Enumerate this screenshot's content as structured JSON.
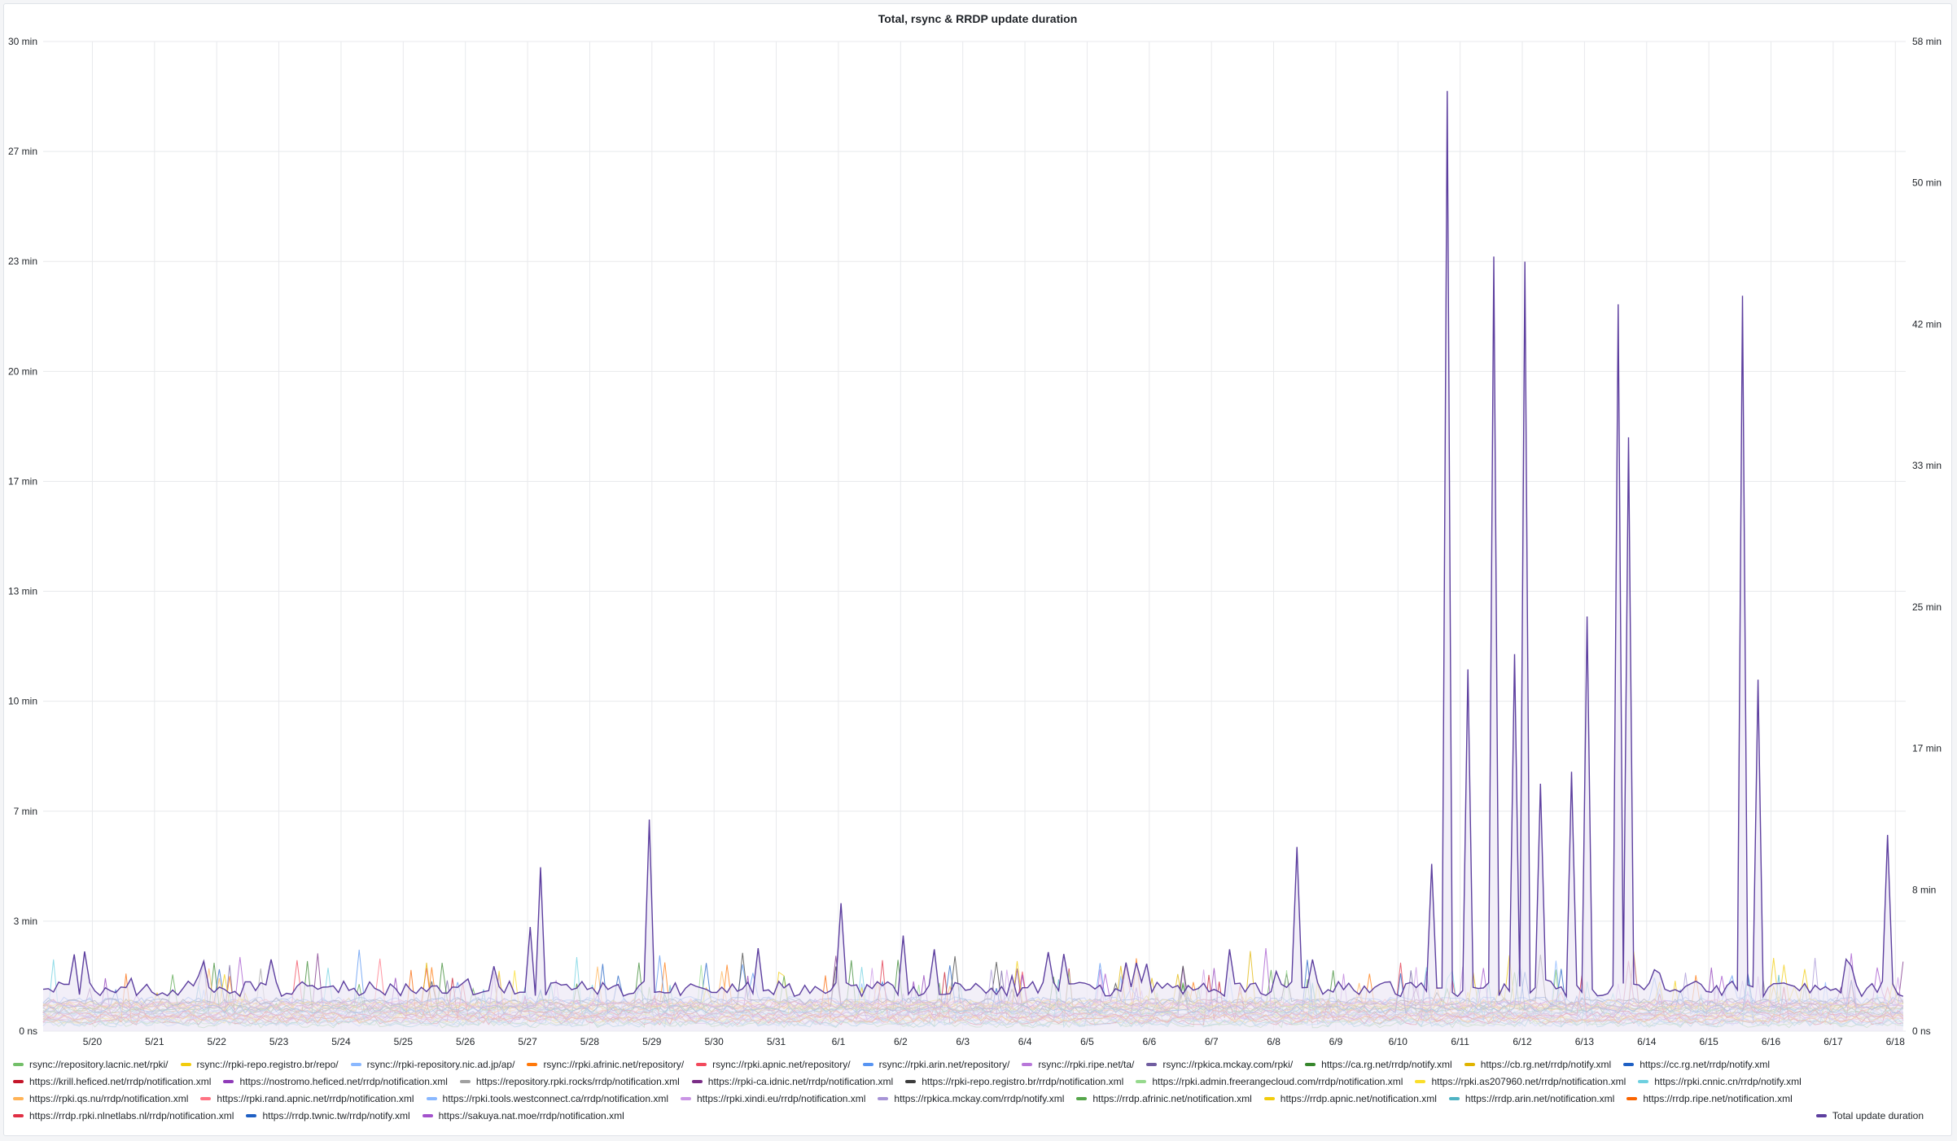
{
  "chart_data": {
    "type": "line",
    "title": "Total, rsync & RRDP update duration",
    "xlabel": "",
    "ylabel": "",
    "x_tick_labels": [
      "5/20",
      "5/21",
      "5/22",
      "5/23",
      "5/24",
      "5/25",
      "5/26",
      "5/27",
      "5/28",
      "5/29",
      "5/30",
      "5/31",
      "6/1",
      "6/2",
      "6/3",
      "6/4",
      "6/5",
      "6/6",
      "6/7",
      "6/8",
      "6/9",
      "6/10",
      "6/11",
      "6/12",
      "6/13",
      "6/14",
      "6/15",
      "6/16",
      "6/17",
      "6/18"
    ],
    "xlim": [
      "5/19 05:00",
      "6/18 04:00"
    ],
    "y_left": {
      "tick_labels": [
        "0 ns",
        "3 min",
        "7 min",
        "10 min",
        "13 min",
        "17 min",
        "20 min",
        "23 min",
        "27 min",
        "30 min"
      ],
      "ylim_minutes": [
        0,
        30
      ]
    },
    "y_right": {
      "tick_labels": [
        "0 ns",
        "8 min",
        "17 min",
        "25 min",
        "33 min",
        "42 min",
        "50 min",
        "58 min"
      ],
      "ylim_minutes": [
        0,
        58
      ]
    },
    "grid": true,
    "legend_position": "bottom",
    "total_series": {
      "name": "Total update duration",
      "axis": "right",
      "baseline_minutes": 2.3,
      "spikes": [
        {
          "x": "5/19 17:00",
          "y": 4.5
        },
        {
          "x": "5/21 19:00",
          "y": 4.1
        },
        {
          "x": "5/22 20:00",
          "y": 4.2
        },
        {
          "x": "5/27 00:00",
          "y": 6.1
        },
        {
          "x": "5/27 04:00",
          "y": 9.6
        },
        {
          "x": "5/28 22:00",
          "y": 12.4
        },
        {
          "x": "6/1 00:00",
          "y": 7.5
        },
        {
          "x": "6/2 00:00",
          "y": 5.6
        },
        {
          "x": "6/8 08:00",
          "y": 10.8
        },
        {
          "x": "6/10 13:00",
          "y": 9.8
        },
        {
          "x": "6/10 18:00",
          "y": 55.1
        },
        {
          "x": "6/11 03:00",
          "y": 21.2
        },
        {
          "x": "6/11 13:00",
          "y": 45.4
        },
        {
          "x": "6/11 20:00",
          "y": 22.1
        },
        {
          "x": "6/12 00:00",
          "y": 45.1
        },
        {
          "x": "6/12 06:00",
          "y": 14.5
        },
        {
          "x": "6/12 18:00",
          "y": 15.2
        },
        {
          "x": "6/13 00:00",
          "y": 24.3
        },
        {
          "x": "6/13 12:00",
          "y": 42.6
        },
        {
          "x": "6/13 17:00",
          "y": 34.8
        },
        {
          "x": "6/15 12:00",
          "y": 43.1
        },
        {
          "x": "6/15 19:00",
          "y": 20.6
        },
        {
          "x": "6/17 20:00",
          "y": 11.5
        }
      ]
    },
    "series_axis": "left",
    "series_typical_minutes": {
      "min": 0.1,
      "max": 1.3
    },
    "series": [
      {
        "name": "rsync://repository.lacnic.net/rpki/",
        "color": "#73bf69"
      },
      {
        "name": "rsync://rpki-repo.registro.br/repo/",
        "color": "#f2cc0c"
      },
      {
        "name": "rsync://rpki-repository.nic.ad.jp/ap/",
        "color": "#8ab8ff"
      },
      {
        "name": "rsync://rpki.afrinic.net/repository/",
        "color": "#ff780a"
      },
      {
        "name": "rsync://rpki.apnic.net/repository/",
        "color": "#f2495c"
      },
      {
        "name": "rsync://rpki.arin.net/repository/",
        "color": "#5794f2"
      },
      {
        "name": "rsync://rpki.ripe.net/ta/",
        "color": "#b877d9"
      },
      {
        "name": "rsync://rpkica.mckay.com/rpki/",
        "color": "#705da0"
      },
      {
        "name": "https://ca.rg.net/rrdp/notify.xml",
        "color": "#37872d"
      },
      {
        "name": "https://cb.rg.net/rrdp/notify.xml",
        "color": "#e0b400"
      },
      {
        "name": "https://cc.rg.net/rrdp/notify.xml",
        "color": "#1f60c4"
      },
      {
        "name": "https://krill.heficed.net/rrdp/notification.xml",
        "color": "#c4162a"
      },
      {
        "name": "https://nostromo.heficed.net/rrdp/notification.xml",
        "color": "#8f3bb8"
      },
      {
        "name": "https://repository.rpki.rocks/rrdp/notification.xml",
        "color": "#a0a0a0"
      },
      {
        "name": "https://rpki-ca.idnic.net/rrdp/notification.xml",
        "color": "#7a2d86"
      },
      {
        "name": "https://rpki-repo.registro.br/rrdp/notification.xml",
        "color": "#3d3d3d"
      },
      {
        "name": "https://rpki.admin.freerangecloud.com/rrdp/notification.xml",
        "color": "#96d98d"
      },
      {
        "name": "https://rpki.as207960.net/rrdp/notification.xml",
        "color": "#fade2a"
      },
      {
        "name": "https://rpki.cnnic.cn/rrdp/notify.xml",
        "color": "#6ed0e0"
      },
      {
        "name": "https://rpki.qs.nu/rrdp/notification.xml",
        "color": "#ffb357"
      },
      {
        "name": "https://rpki.rand.apnic.net/rrdp/notification.xml",
        "color": "#ff7383"
      },
      {
        "name": "https://rpki.tools.westconnect.ca/rrdp/notification.xml",
        "color": "#8ab8ff"
      },
      {
        "name": "https://rpki.xindi.eu/rrdp/notification.xml",
        "color": "#ca95e5"
      },
      {
        "name": "https://rpkica.mckay.com/rrdp/notify.xml",
        "color": "#a794d6"
      },
      {
        "name": "https://rrdp.afrinic.net/notification.xml",
        "color": "#56a64b"
      },
      {
        "name": "https://rrdp.apnic.net/notification.xml",
        "color": "#f2cc0c"
      },
      {
        "name": "https://rrdp.arin.net/notification.xml",
        "color": "#4fb3c3"
      },
      {
        "name": "https://rrdp.ripe.net/notification.xml",
        "color": "#fa6400"
      },
      {
        "name": "https://rrdp.rpki.nlnetlabs.nl/rrdp/notification.xml",
        "color": "#e02f44"
      },
      {
        "name": "https://rrdp.twnic.tw/rrdp/notify.xml",
        "color": "#1f60c4"
      },
      {
        "name": "https://sakuya.nat.moe/rrdp/notification.xml",
        "color": "#a352cc"
      }
    ]
  },
  "legend": {
    "rows": [
      [
        "rsync://repository.lacnic.net/rpki/",
        "rsync://rpki-repo.registro.br/repo/",
        "rsync://rpki-repository.nic.ad.jp/ap/",
        "rsync://rpki.afrinic.net/repository/",
        "rsync://rpki.apnic.net/repository/",
        "rsync://rpki.arin.net/repository/",
        "rsync://rpki.ripe.net/ta/",
        "rsync://rpkica.mckay.com/rpki/",
        "https://ca.rg.net/rrdp/notify.xml",
        "https://cb.rg.net/rrdp/notify.xml",
        "https://cc.rg.net/rrdp/notify.xml"
      ],
      [
        "https://krill.heficed.net/rrdp/notification.xml",
        "https://nostromo.heficed.net/rrdp/notification.xml",
        "https://repository.rpki.rocks/rrdp/notification.xml",
        "https://rpki-ca.idnic.net/rrdp/notification.xml",
        "https://rpki-repo.registro.br/rrdp/notification.xml",
        "https://rpki.admin.freerangecloud.com/rrdp/notification.xml",
        "https://rpki.as207960.net/rrdp/notification.xml",
        "https://rpki.cnnic.cn/rrdp/notify.xml"
      ],
      [
        "https://rpki.qs.nu/rrdp/notification.xml",
        "https://rpki.rand.apnic.net/rrdp/notification.xml",
        "https://rpki.tools.westconnect.ca/rrdp/notification.xml",
        "https://rpki.xindi.eu/rrdp/notification.xml",
        "https://rpkica.mckay.com/rrdp/notify.xml",
        "https://rrdp.afrinic.net/notification.xml",
        "https://rrdp.apnic.net/notification.xml",
        "https://rrdp.arin.net/notification.xml",
        "https://rrdp.ripe.net/notification.xml"
      ],
      [
        "https://rrdp.rpki.nlnetlabs.nl/rrdp/notification.xml",
        "https://rrdp.twnic.tw/rrdp/notify.xml",
        "https://sakuya.nat.moe/rrdp/notification.xml"
      ]
    ],
    "total_label": "Total update duration",
    "total_color": "#5d3f9f"
  },
  "colors": {
    "grid": "#e8e9ec",
    "tick_text": "#1f2328",
    "total_line": "#5d3f9f",
    "total_fill": "#ece8f5"
  }
}
